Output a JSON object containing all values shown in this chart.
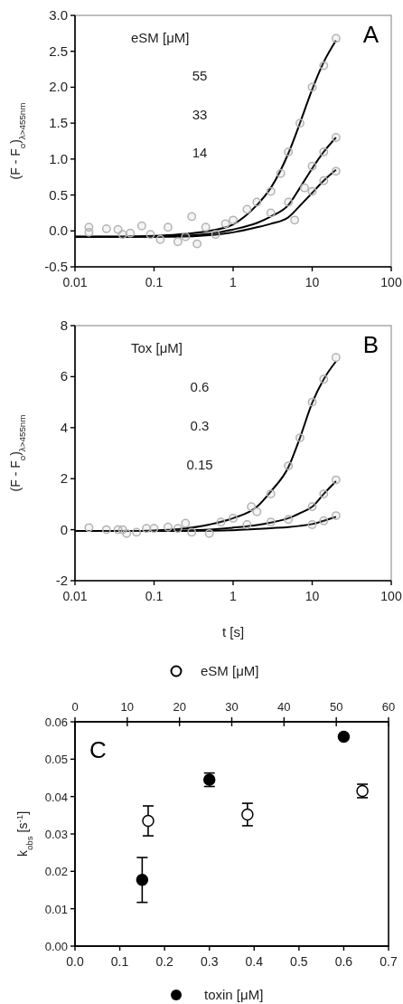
{
  "chart_data": [
    {
      "type": "line",
      "ylabel": "(F - F$_{o}$)$_{λ>455nm}$",
      "annotations": [
        "A",
        "eSM [μM]",
        "55",
        "33",
        "14"
      ],
      "log": "x",
      "xlim": [
        0.01,
        100
      ],
      "xticks": [
        0.01,
        0.1,
        1,
        10,
        100
      ],
      "ylim": [
        -0.5,
        3.0
      ],
      "yticks": [
        {
          "value": -0.5,
          "label": "-0.5"
        },
        {
          "value": 0,
          "label": "0.0"
        },
        0.5,
        {
          "value": 1,
          "label": "1.0"
        },
        1.5,
        {
          "value": 2,
          "label": "2.0"
        },
        2.5,
        {
          "value": 3,
          "label": "3.0"
        }
      ],
      "series": [
        {
          "type": "scatter",
          "marker": "circle",
          "color": "#b4b4b4",
          "x": [
            0.015,
            0.015,
            0.025,
            0.035,
            0.04,
            0.05,
            0.07,
            0.09,
            0.12,
            0.15,
            0.2,
            0.25,
            0.3,
            0.35,
            0.45,
            0.6,
            0.8,
            1,
            1.5,
            2,
            3,
            3,
            4,
            5,
            5,
            6,
            7,
            8,
            10,
            10,
            10,
            14,
            14,
            14,
            20,
            20,
            20
          ],
          "values": [
            0.05,
            -0.02,
            0.03,
            0.02,
            -0.05,
            -0.03,
            0.07,
            -0.05,
            -0.12,
            0.05,
            -0.15,
            -0.08,
            0.2,
            -0.18,
            0.05,
            -0.05,
            0.1,
            0.15,
            0.3,
            0.4,
            0.55,
            0.25,
            0.8,
            1.1,
            0.4,
            0.15,
            1.5,
            0.6,
            2.0,
            0.9,
            0.55,
            2.3,
            1.1,
            0.7,
            2.68,
            1.3,
            0.83
          ]
        },
        {
          "type": "line",
          "color": "#000000",
          "x": [
            0.01,
            0.05,
            0.1,
            0.2,
            0.5,
            1,
            2,
            3,
            5,
            7,
            10,
            14,
            20
          ],
          "values": [
            -0.08,
            -0.08,
            -0.07,
            -0.05,
            0.0,
            0.09,
            0.36,
            0.6,
            1.08,
            1.5,
            1.97,
            2.35,
            2.65
          ]
        },
        {
          "type": "line",
          "color": "#000000",
          "x": [
            0.01,
            0.05,
            0.1,
            0.2,
            0.5,
            1,
            2,
            3,
            5,
            7,
            10,
            14,
            20
          ],
          "values": [
            -0.08,
            -0.08,
            -0.08,
            -0.07,
            -0.04,
            0.02,
            0.11,
            0.2,
            0.36,
            0.6,
            0.87,
            1.1,
            1.3
          ]
        },
        {
          "type": "line",
          "color": "#000000",
          "x": [
            0.01,
            0.05,
            0.1,
            0.2,
            0.5,
            1,
            2,
            3,
            5,
            7,
            10,
            14,
            20
          ],
          "values": [
            -0.08,
            -0.08,
            -0.08,
            -0.08,
            -0.06,
            -0.02,
            0.05,
            0.1,
            0.19,
            0.35,
            0.53,
            0.7,
            0.85
          ]
        }
      ]
    },
    {
      "type": "line",
      "xlabel": "t [s]",
      "ylabel": "(F - F$_{o}$)$_{λ>455nm}$",
      "annotations": [
        "B",
        "Tox [μM]",
        "0.6",
        "0.3",
        "0.15"
      ],
      "log": "x",
      "xlim": [
        0.01,
        100
      ],
      "xticks": [
        0.01,
        0.1,
        1,
        10,
        100
      ],
      "ylim": [
        -2,
        8
      ],
      "yticks": [
        -2,
        0,
        2,
        4,
        6,
        8
      ],
      "series": [
        {
          "type": "scatter",
          "marker": "circle",
          "color": "#b4b4b4",
          "x": [
            0.015,
            0.025,
            0.035,
            0.04,
            0.045,
            0.06,
            0.08,
            0.1,
            0.15,
            0.2,
            0.25,
            0.3,
            0.5,
            0.7,
            1,
            1.5,
            1.7,
            2,
            3,
            3,
            5,
            5,
            7,
            10,
            10,
            10,
            14,
            14,
            14,
            20,
            20,
            20
          ],
          "values": [
            0.08,
            0.0,
            0.0,
            0.0,
            -0.15,
            -0.1,
            0.05,
            0.05,
            0.1,
            0.05,
            0.25,
            -0.1,
            -0.15,
            0.3,
            0.45,
            0.2,
            0.9,
            0.7,
            0.3,
            1.4,
            2.5,
            0.4,
            3.6,
            5.0,
            0.9,
            0.2,
            5.9,
            1.4,
            0.35,
            6.75,
            1.95,
            0.55
          ]
        },
        {
          "type": "line",
          "color": "#000000",
          "x": [
            0.01,
            0.05,
            0.1,
            0.2,
            0.5,
            1,
            2,
            3,
            5,
            7,
            10,
            14,
            20
          ],
          "values": [
            -0.05,
            -0.05,
            -0.03,
            0.02,
            0.2,
            0.45,
            0.9,
            1.5,
            2.45,
            3.6,
            4.97,
            5.9,
            6.6
          ]
        },
        {
          "type": "line",
          "color": "#000000",
          "x": [
            0.01,
            0.05,
            0.1,
            0.2,
            0.5,
            1,
            2,
            3,
            5,
            7,
            10,
            14,
            20
          ],
          "values": [
            -0.05,
            -0.05,
            -0.05,
            -0.04,
            0.0,
            0.08,
            0.18,
            0.28,
            0.45,
            0.65,
            0.9,
            1.4,
            1.9
          ]
        },
        {
          "type": "line",
          "color": "#000000",
          "x": [
            0.01,
            0.05,
            0.1,
            0.2,
            0.5,
            1,
            2,
            3,
            5,
            7,
            10,
            14,
            20
          ],
          "values": [
            -0.05,
            -0.05,
            -0.05,
            -0.05,
            -0.04,
            -0.02,
            0.03,
            0.06,
            0.1,
            0.15,
            0.22,
            0.35,
            0.5
          ]
        }
      ]
    },
    {
      "type": "scatter",
      "xlabel": "toxin [μM]",
      "x2label": "eSM [μM]",
      "ylabel": "k$_{obs}$ [s$^{-1}$]",
      "annotations": [
        "C"
      ],
      "xlim": [
        0,
        0.7
      ],
      "xticks": [
        {
          "value": 0,
          "label": "0.0"
        },
        0.1,
        0.2,
        0.3,
        0.4,
        0.5,
        0.6,
        0.7
      ],
      "x2lim": [
        0,
        60
      ],
      "x2ticks": [
        0,
        10,
        20,
        30,
        40,
        50,
        60
      ],
      "ylim": [
        0,
        0.06
      ],
      "yticks": [
        {
          "value": 0,
          "label": "0.00"
        },
        {
          "value": 0.01,
          "label": "0.01"
        },
        {
          "value": 0.02,
          "label": "0.02"
        },
        {
          "value": 0.03,
          "label": "0.03"
        },
        {
          "value": 0.04,
          "label": "0.04"
        },
        {
          "value": 0.05,
          "label": "0.05"
        },
        {
          "value": 0.06,
          "label": "0.06"
        }
      ],
      "marker": "circle",
      "series": [
        {
          "color": "#000000",
          "x": [
            0.15,
            0.3,
            0.6
          ],
          "values": [
            0.0177,
            0.0445,
            0.056
          ],
          "errors": [
            [
              0.0117,
              0.0237
            ],
            0.0018,
            null
          ]
        },
        {
          "axis": "x2",
          "color": "#ffffff",
          "x": [
            14,
            33,
            55
          ],
          "values": [
            0.0335,
            0.0352,
            0.0415
          ],
          "errors": [
            0.004,
            0.003,
            0.0018
          ]
        }
      ]
    }
  ]
}
